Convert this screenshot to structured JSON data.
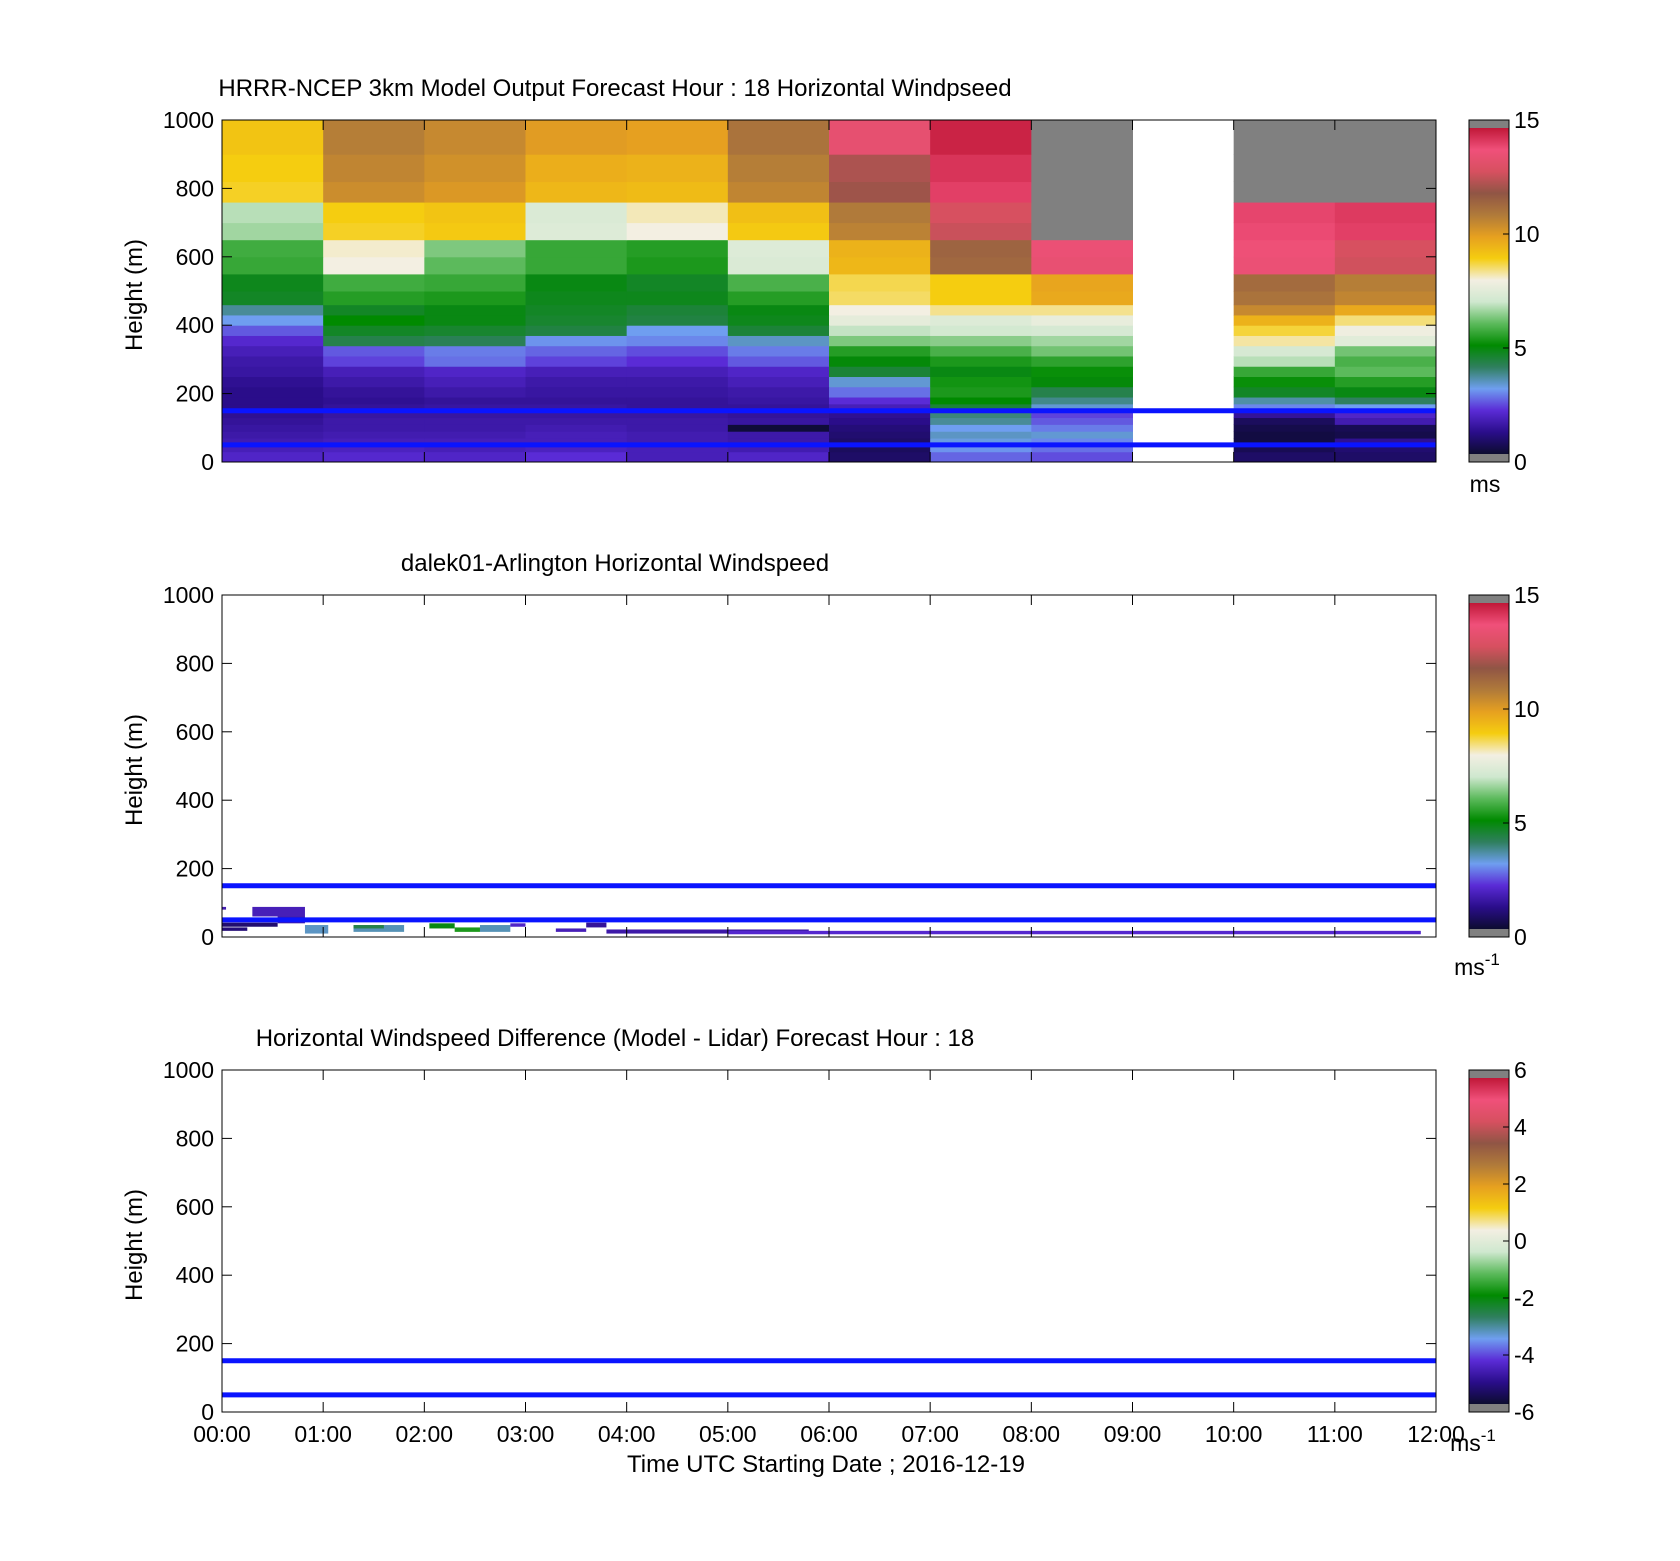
{
  "chart_data": [
    {
      "type": "heatmap",
      "title": "HRRR-NCEP 3km Model Output   Forecast Hour : 18 Horizontal Windpseed",
      "ylabel": "Height (m)",
      "ylim": [
        0,
        1000
      ],
      "yticks": [
        "0",
        "200",
        "400",
        "600",
        "800",
        "1000"
      ],
      "xlim_hours": [
        0,
        12
      ],
      "show_xticklabels": false,
      "colorbar": {
        "range": [
          0,
          15
        ],
        "ticks": [
          "0",
          "5",
          "10",
          "15"
        ],
        "unit": "ms",
        "unit_sup": ""
      },
      "reference_lines_m": [
        50,
        150
      ],
      "columns_hours": [
        0,
        1,
        2,
        3,
        4,
        5,
        6,
        7,
        8,
        9,
        10,
        11,
        12
      ],
      "row_edges_m": [
        0,
        30,
        50,
        70,
        90,
        110,
        130,
        150,
        170,
        190,
        220,
        250,
        280,
        310,
        340,
        370,
        400,
        430,
        460,
        500,
        550,
        600,
        650,
        700,
        760,
        820,
        900,
        1000
      ],
      "values": [
        [
          1.8,
          1.9,
          1.8,
          2.0,
          1.6,
          1.8,
          0.6,
          2.5,
          2.3,
          null,
          0.6,
          0.6
        ],
        [
          1.6,
          1.7,
          1.6,
          1.7,
          1.6,
          1.5,
          0.5,
          2.9,
          2.6,
          null,
          0.4,
          0.7
        ],
        [
          1.5,
          1.6,
          1.6,
          1.6,
          1.5,
          1.4,
          0.6,
          3.1,
          2.8,
          null,
          0.2,
          1.1
        ],
        [
          1.4,
          1.5,
          1.5,
          1.6,
          1.5,
          1.4,
          0.7,
          3.3,
          3.2,
          null,
          0.2,
          0.3
        ],
        [
          1.3,
          1.4,
          1.4,
          1.5,
          1.4,
          0.1,
          0.8,
          3.0,
          2.7,
          null,
          0.3,
          0.4
        ],
        [
          1.2,
          1.4,
          1.4,
          1.4,
          1.4,
          1.3,
          1.0,
          3.6,
          2.4,
          null,
          0.5,
          1.5
        ],
        [
          1.1,
          1.3,
          1.3,
          1.3,
          1.3,
          1.2,
          1.1,
          3.8,
          2.2,
          null,
          1.2,
          1.8
        ],
        [
          1.0,
          1.2,
          1.3,
          1.3,
          1.2,
          1.2,
          1.6,
          4.4,
          3.2,
          null,
          2.8,
          3.0
        ],
        [
          1.0,
          1.1,
          1.2,
          1.2,
          1.2,
          1.3,
          2.0,
          5.0,
          3.7,
          null,
          3.5,
          4.0
        ],
        [
          1.0,
          1.2,
          1.4,
          1.3,
          1.3,
          1.4,
          2.6,
          5.3,
          4.2,
          null,
          4.6,
          4.8
        ],
        [
          1.1,
          1.4,
          1.6,
          1.4,
          1.4,
          1.6,
          3.2,
          5.2,
          4.9,
          null,
          5.1,
          5.4
        ],
        [
          1.3,
          1.6,
          1.8,
          1.6,
          1.6,
          1.8,
          4.4,
          4.8,
          5.1,
          null,
          5.6,
          6.0
        ],
        [
          1.4,
          2.2,
          2.6,
          2.2,
          2.0,
          2.4,
          4.9,
          5.3,
          5.5,
          null,
          6.8,
          5.8
        ],
        [
          1.6,
          2.4,
          2.7,
          2.5,
          2.3,
          2.7,
          5.4,
          5.8,
          6.2,
          null,
          7.2,
          6.2
        ],
        [
          1.9,
          4.2,
          4.1,
          2.9,
          2.8,
          3.3,
          6.3,
          6.4,
          6.6,
          null,
          8.3,
          7.5
        ],
        [
          2.4,
          4.6,
          4.5,
          4.3,
          3.0,
          4.4,
          6.9,
          7.1,
          7.2,
          null,
          8.8,
          7.9
        ],
        [
          3.0,
          5.0,
          4.8,
          4.5,
          4.3,
          4.7,
          7.6,
          7.4,
          7.7,
          null,
          9.6,
          8.5
        ],
        [
          3.6,
          4.6,
          4.8,
          4.6,
          4.4,
          4.8,
          8.0,
          8.4,
          8.4,
          null,
          10.6,
          9.8
        ],
        [
          4.6,
          5.4,
          5.3,
          4.7,
          4.7,
          5.4,
          8.6,
          9.0,
          9.8,
          null,
          11.2,
          10.7
        ],
        [
          4.7,
          5.7,
          5.6,
          4.8,
          4.6,
          5.8,
          8.7,
          9.0,
          9.9,
          null,
          11.4,
          10.9
        ],
        [
          5.6,
          8.0,
          6.0,
          5.6,
          5.3,
          7.3,
          9.5,
          11.5,
          13.7,
          null,
          13.8,
          12.9
        ],
        [
          5.7,
          8.1,
          6.3,
          5.6,
          5.4,
          7.4,
          9.6,
          11.6,
          13.8,
          null,
          13.9,
          13.0
        ],
        [
          6.6,
          8.9,
          9.1,
          7.4,
          8.0,
          9.1,
          10.8,
          12.8,
          16.0,
          null,
          14.1,
          14.3
        ],
        [
          6.8,
          9.0,
          9.2,
          7.3,
          8.2,
          9.3,
          11.0,
          13.0,
          16.0,
          null,
          14.2,
          14.4
        ],
        [
          8.9,
          10.5,
          10.2,
          9.5,
          9.4,
          10.7,
          12.2,
          14.3,
          16.0,
          null,
          16.0,
          16.0
        ],
        [
          9.0,
          10.7,
          10.4,
          9.7,
          9.6,
          10.9,
          12.4,
          14.5,
          16.0,
          null,
          16.0,
          16.0
        ],
        [
          9.2,
          10.9,
          10.6,
          10.1,
          10.0,
          11.2,
          13.6,
          14.8,
          16.0,
          null,
          16.0,
          16.0
        ]
      ]
    },
    {
      "type": "heatmap",
      "title": "dalek01-Arlington  Horizontal Windspeed",
      "ylabel": "Height (m)",
      "ylim": [
        0,
        1000
      ],
      "yticks": [
        "0",
        "200",
        "400",
        "600",
        "800",
        "1000"
      ],
      "xlim_hours": [
        0,
        12
      ],
      "show_xticklabels": false,
      "colorbar": {
        "range": [
          0,
          15
        ],
        "ticks": [
          "0",
          "5",
          "10",
          "15"
        ],
        "unit": "ms",
        "unit_sup": "-1"
      },
      "reference_lines_m": [
        50,
        150
      ],
      "patches": [
        {
          "t0": 0.0,
          "t1": 0.04,
          "h0": 80,
          "h1": 88,
          "v": 1.5
        },
        {
          "t0": 0.0,
          "t1": 0.55,
          "h0": 30,
          "h1": 42,
          "v": 0.7
        },
        {
          "t0": 0.3,
          "t1": 0.82,
          "h0": 60,
          "h1": 88,
          "v": 1.6
        },
        {
          "t0": 0.55,
          "t1": 0.82,
          "h0": 40,
          "h1": 60,
          "v": 1.4
        },
        {
          "t0": 0.0,
          "t1": 0.25,
          "h0": 18,
          "h1": 28,
          "v": 0.8
        },
        {
          "t0": 0.82,
          "t1": 1.05,
          "h0": 10,
          "h1": 35,
          "v": 3.3
        },
        {
          "t0": 1.3,
          "t1": 1.8,
          "h0": 15,
          "h1": 35,
          "v": 3.4
        },
        {
          "t0": 1.3,
          "t1": 1.6,
          "h0": 25,
          "h1": 35,
          "v": 4.2
        },
        {
          "t0": 2.05,
          "t1": 2.3,
          "h0": 25,
          "h1": 40,
          "v": 4.8
        },
        {
          "t0": 2.3,
          "t1": 2.55,
          "h0": 15,
          "h1": 28,
          "v": 5.3
        },
        {
          "t0": 2.55,
          "t1": 2.85,
          "h0": 15,
          "h1": 35,
          "v": 3.4
        },
        {
          "t0": 2.85,
          "t1": 3.0,
          "h0": 30,
          "h1": 40,
          "v": 1.8
        },
        {
          "t0": 3.3,
          "t1": 3.6,
          "h0": 15,
          "h1": 25,
          "v": 1.6
        },
        {
          "t0": 3.6,
          "t1": 3.8,
          "h0": 28,
          "h1": 42,
          "v": 1.2
        },
        {
          "t0": 3.8,
          "t1": 5.8,
          "h0": 10,
          "h1": 22,
          "v": 1.4
        },
        {
          "t0": 5.0,
          "t1": 11.85,
          "h0": 8,
          "h1": 18,
          "v": 1.9
        }
      ]
    },
    {
      "type": "heatmap",
      "title": "Horizontal Windspeed Difference (Model - Lidar) Forecast Hour : 18",
      "ylabel": "Height (m)",
      "xlabel": "Time UTC  Starting Date ; 2016-12-19",
      "ylim": [
        0,
        1000
      ],
      "yticks": [
        "0",
        "200",
        "400",
        "600",
        "800",
        "1000"
      ],
      "xlim_hours": [
        0,
        12
      ],
      "xticks": [
        "00:00",
        "01:00",
        "02:00",
        "03:00",
        "04:00",
        "05:00",
        "06:00",
        "07:00",
        "08:00",
        "09:00",
        "10:00",
        "11:00",
        "12:00"
      ],
      "show_xticklabels": true,
      "colorbar": {
        "range": [
          -6,
          6
        ],
        "ticks": [
          "-6",
          "-4",
          "-2",
          "0",
          "2",
          "4",
          "6"
        ],
        "unit": "ms",
        "unit_sup": "-1"
      },
      "reference_lines_m": [
        50,
        150
      ]
    }
  ],
  "colors": {
    "reference_line": "#0a14ff",
    "out_of_range": "#808080",
    "colormap_stops": [
      "#0c0c30",
      "#2a0d8a",
      "#5a2bd6",
      "#6f9ef0",
      "#2f7f5e",
      "#008a00",
      "#5cba5c",
      "#cfe8cf",
      "#f3efe2",
      "#f5cd10",
      "#e6a020",
      "#b07a3a",
      "#905545",
      "#d75060",
      "#f0507a",
      "#c01838"
    ]
  }
}
